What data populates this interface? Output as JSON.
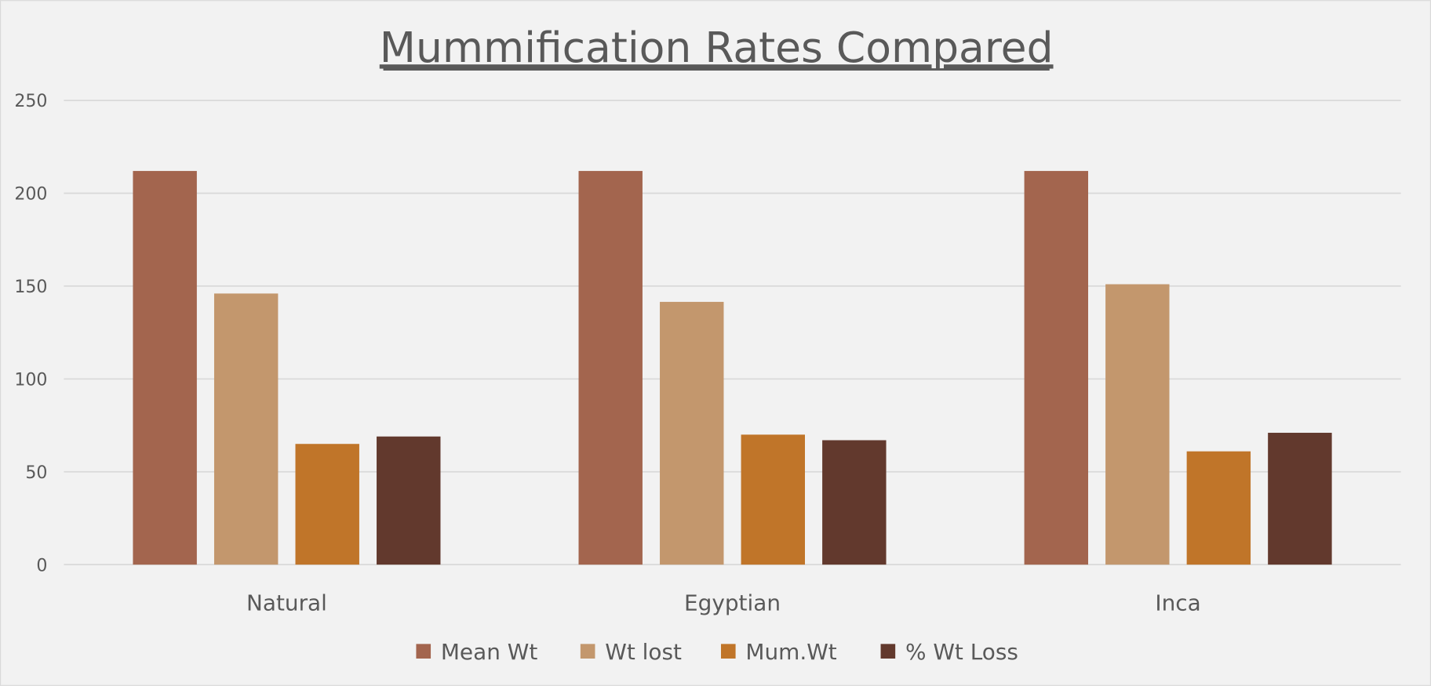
{
  "chart_data": {
    "type": "bar",
    "title": "Mummification Rates Compared",
    "xlabel": "",
    "ylabel": "",
    "categories": [
      "Natural",
      "Egyptian",
      "Inca"
    ],
    "series": [
      {
        "name": "Mean Wt",
        "color": "#a3654e",
        "values": [
          212,
          212,
          212
        ]
      },
      {
        "name": "Wt lost",
        "color": "#c3976d",
        "values": [
          146,
          141.5,
          151
        ]
      },
      {
        "name": "Mum.Wt",
        "color": "#c07529",
        "values": [
          65,
          70,
          61
        ]
      },
      {
        "name": "% Wt Loss",
        "color": "#62392d",
        "values": [
          69,
          67,
          71
        ]
      }
    ],
    "ylim": [
      0,
      250
    ],
    "yticks": [
      "0",
      "50",
      "100",
      "150",
      "200",
      "250"
    ],
    "grid": true,
    "legend_position": "bottom"
  }
}
